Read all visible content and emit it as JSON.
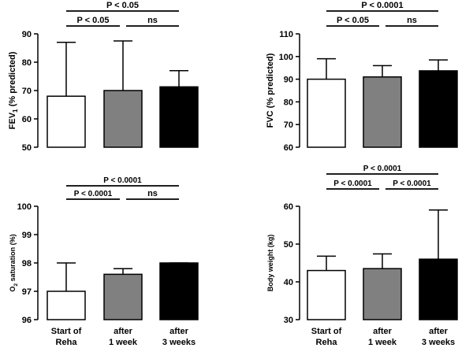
{
  "colors": {
    "bar_fills": [
      "#ffffff",
      "#808080",
      "#000000"
    ],
    "stroke": "#000000"
  },
  "categories": [
    [
      "Start of",
      "Reha"
    ],
    [
      "after",
      "1 week"
    ],
    [
      "after",
      "3 weeks"
    ]
  ],
  "chart_data": [
    {
      "type": "bar",
      "ylabel": {
        "main": "FEV",
        "sub": "1",
        "rest": " (% predicted)"
      },
      "ylim": [
        50,
        90
      ],
      "yticks": [
        "50",
        "60",
        "70",
        "80",
        "90"
      ],
      "values": [
        68,
        70,
        71.3
      ],
      "error_upper": [
        87,
        87.5,
        77
      ],
      "show_categories": false,
      "significance": [
        {
          "from": 0,
          "to": 1,
          "label": "P < 0.05",
          "level": 1
        },
        {
          "from": 1,
          "to": 2,
          "label": "ns",
          "level": 1
        },
        {
          "from": 0,
          "to": 2,
          "label": "P < 0.05",
          "level": 2
        }
      ]
    },
    {
      "type": "bar",
      "ylabel": {
        "main": "FVC (% predicted)"
      },
      "ylim": [
        60,
        110
      ],
      "yticks": [
        "60",
        "70",
        "80",
        "90",
        "100",
        "110"
      ],
      "values": [
        90,
        91,
        93.7
      ],
      "error_upper": [
        99,
        96,
        98.5
      ],
      "show_categories": false,
      "significance": [
        {
          "from": 0,
          "to": 1,
          "label": "P < 0.05",
          "level": 1
        },
        {
          "from": 1,
          "to": 2,
          "label": "ns",
          "level": 1
        },
        {
          "from": 0,
          "to": 2,
          "label": "P < 0.0001",
          "level": 2
        }
      ]
    },
    {
      "type": "bar",
      "ylabel": {
        "main": "O",
        "sub": "2",
        "rest": " saturation (%)"
      },
      "ylim": [
        96,
        100
      ],
      "yticks": [
        "96",
        "97",
        "98",
        "99",
        "100"
      ],
      "values": [
        97,
        97.6,
        98
      ],
      "error_upper": [
        98,
        97.8,
        98
      ],
      "show_categories": true,
      "significance": [
        {
          "from": 0,
          "to": 1,
          "label": "P < 0.0001",
          "level": 1
        },
        {
          "from": 1,
          "to": 2,
          "label": "ns",
          "level": 1
        },
        {
          "from": 0,
          "to": 2,
          "label": "P < 0.0001",
          "level": 2
        }
      ]
    },
    {
      "type": "bar",
      "ylabel": {
        "main": "Body weight (kg)"
      },
      "ylim": [
        30,
        60
      ],
      "yticks": [
        "30",
        "40",
        "50",
        "60"
      ],
      "values": [
        43,
        43.5,
        46
      ],
      "error_upper": [
        46.8,
        47.4,
        59
      ],
      "show_categories": true,
      "significance": [
        {
          "from": 0,
          "to": 1,
          "label": "P < 0.0001",
          "level": 1
        },
        {
          "from": 1,
          "to": 2,
          "label": "P < 0.0001",
          "level": 1
        },
        {
          "from": 0,
          "to": 2,
          "label": "P < 0.0001",
          "level": 2
        }
      ]
    }
  ]
}
